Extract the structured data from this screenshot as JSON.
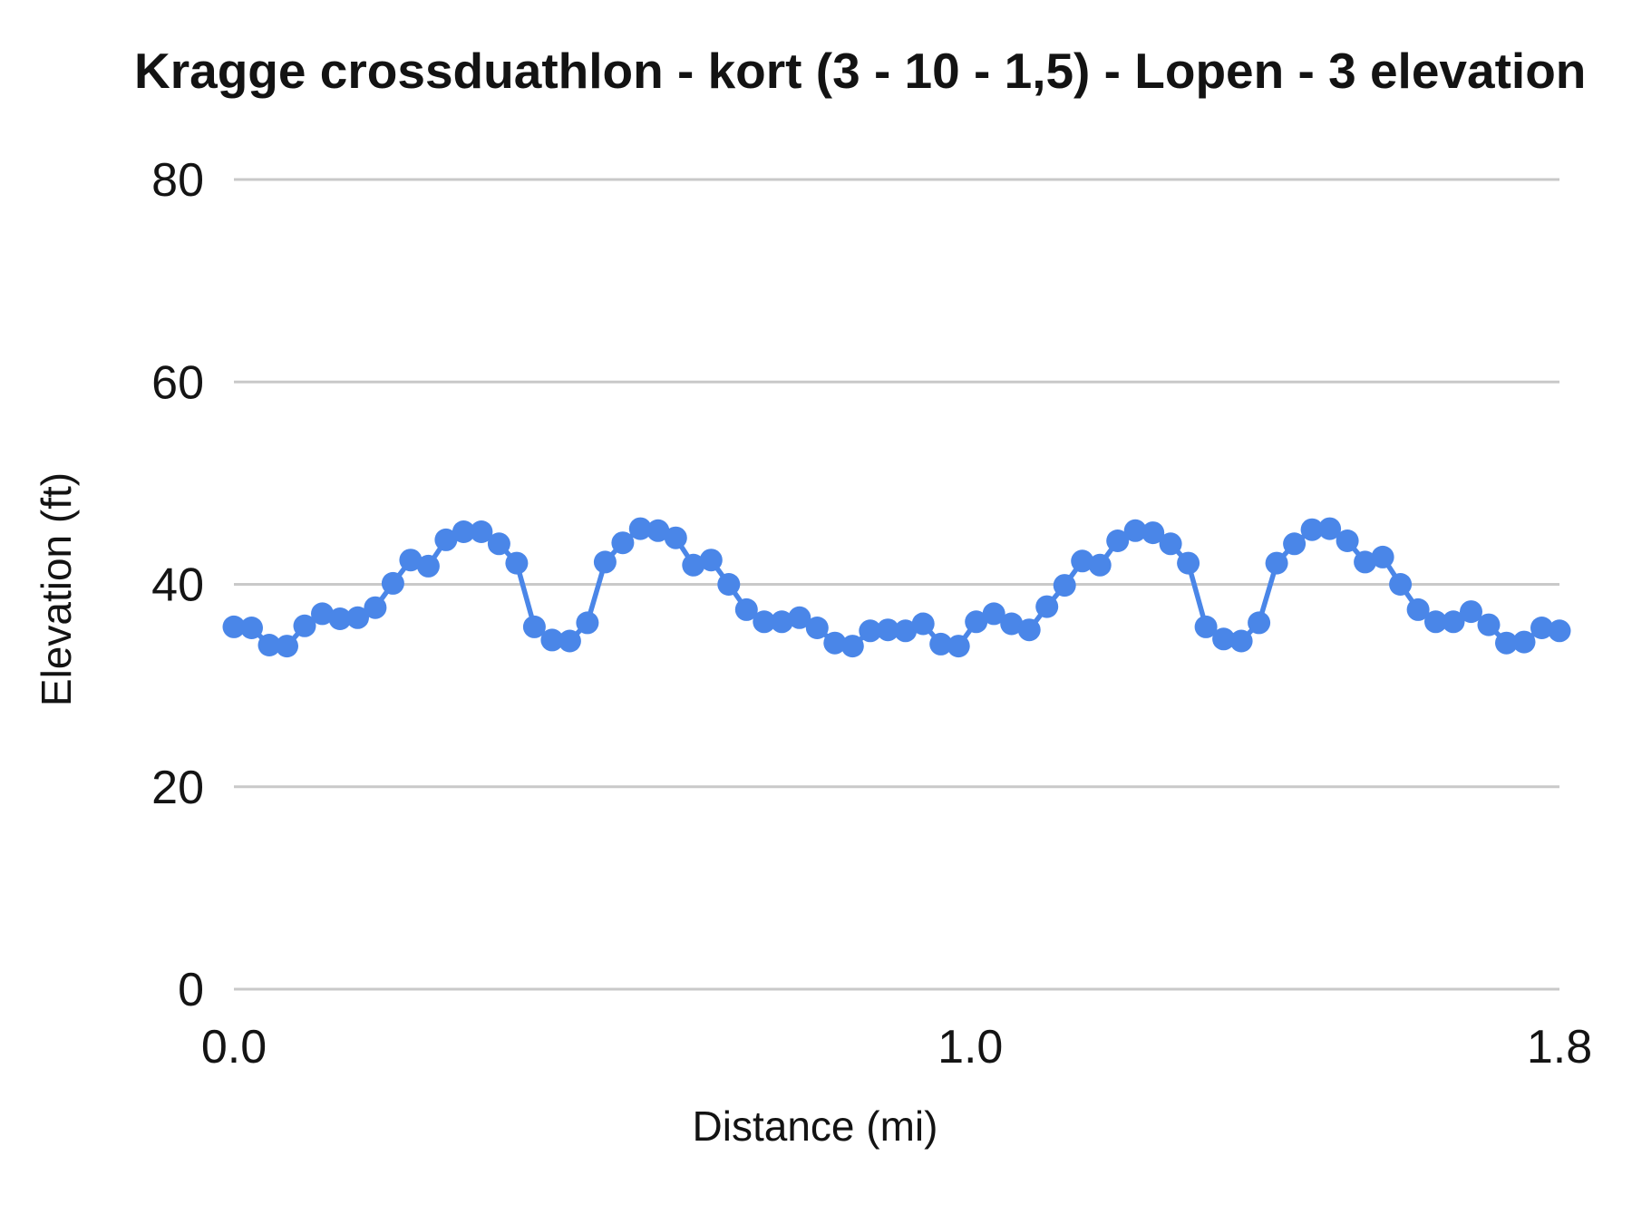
{
  "chart_data": {
    "type": "line",
    "title": "Kragge crossduathlon - kort (3 - 10 - 1,5) - Lopen - 3 elevation",
    "xlabel": "Distance (mi)",
    "ylabel": "Elevation (ft)",
    "xlim": [
      0,
      1.8
    ],
    "ylim": [
      0,
      80
    ],
    "yticks": [
      0,
      20,
      40,
      60,
      80
    ],
    "xticks": [
      {
        "value": 0.0,
        "label": "0.0"
      },
      {
        "value": 1.0,
        "label": "1.0"
      },
      {
        "value": 1.8,
        "label": "1.8"
      }
    ],
    "grid": "horizontal",
    "legend_position": "none",
    "series": [
      {
        "name": "elevation",
        "style": "line-with-points",
        "x": [
          0.0,
          0.024,
          0.048,
          0.072,
          0.096,
          0.12,
          0.144,
          0.168,
          0.192,
          0.216,
          0.24,
          0.264,
          0.288,
          0.312,
          0.336,
          0.36,
          0.384,
          0.408,
          0.432,
          0.456,
          0.48,
          0.504,
          0.528,
          0.552,
          0.576,
          0.6,
          0.624,
          0.648,
          0.672,
          0.696,
          0.72,
          0.744,
          0.768,
          0.792,
          0.816,
          0.84,
          0.864,
          0.888,
          0.912,
          0.936,
          0.96,
          0.984,
          1.008,
          1.032,
          1.056,
          1.08,
          1.104,
          1.128,
          1.152,
          1.176,
          1.2,
          1.224,
          1.248,
          1.272,
          1.296,
          1.32,
          1.344,
          1.368,
          1.392,
          1.416,
          1.44,
          1.464,
          1.488,
          1.512,
          1.536,
          1.56,
          1.584,
          1.608,
          1.632,
          1.656,
          1.68,
          1.704,
          1.728,
          1.752,
          1.776,
          1.8
        ],
        "values": [
          35.8,
          35.7,
          34.0,
          33.9,
          35.9,
          37.1,
          36.6,
          36.7,
          37.7,
          40.1,
          42.4,
          41.8,
          44.4,
          45.2,
          45.2,
          44.0,
          42.1,
          35.8,
          34.5,
          34.4,
          36.2,
          42.2,
          44.1,
          45.5,
          45.3,
          44.6,
          41.9,
          42.4,
          40.0,
          37.5,
          36.3,
          36.3,
          36.7,
          35.7,
          34.2,
          33.9,
          35.4,
          35.5,
          35.4,
          36.1,
          34.1,
          33.9,
          36.3,
          37.1,
          36.1,
          35.5,
          37.8,
          39.9,
          42.3,
          41.9,
          44.3,
          45.3,
          45.1,
          44.0,
          42.1,
          35.8,
          34.6,
          34.4,
          36.2,
          42.1,
          44.0,
          45.4,
          45.5,
          44.3,
          42.2,
          42.7,
          40.0,
          37.5,
          36.3,
          36.3,
          37.3,
          36.0,
          34.2,
          34.3,
          35.7,
          35.4
        ]
      }
    ]
  },
  "colors": {
    "accent": "#4a86e8",
    "gridline": "#c9c9c9",
    "text": "#141414",
    "background": "#ffffff"
  }
}
